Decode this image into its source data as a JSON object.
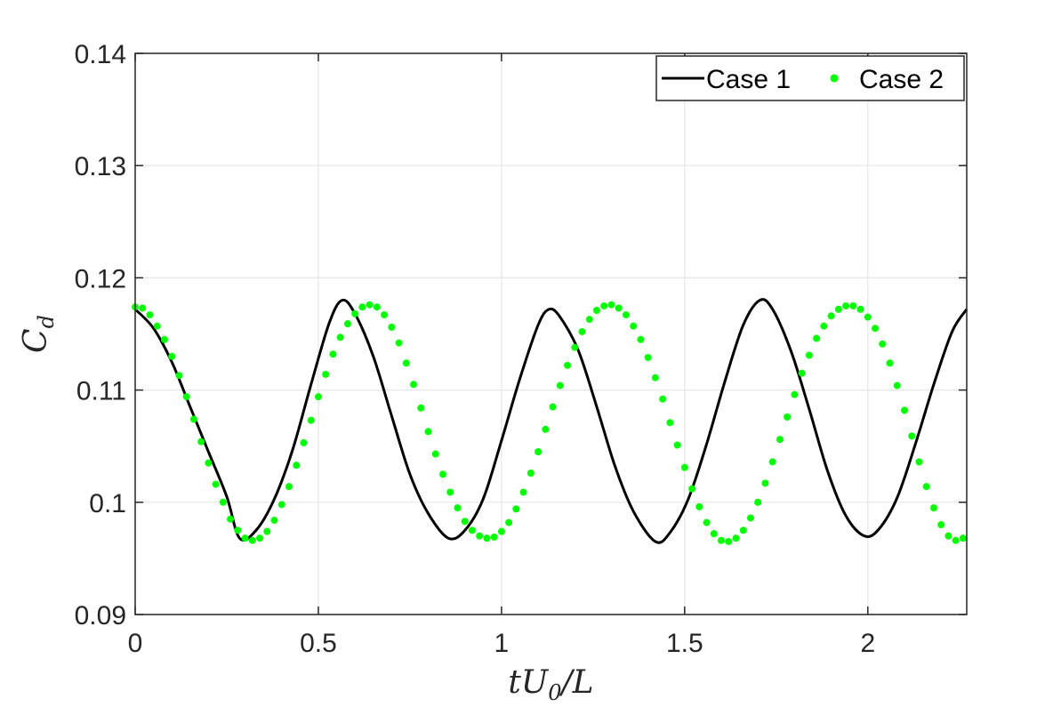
{
  "chart_data": {
    "type": "line",
    "title": "",
    "xlabel": "tU_0/L",
    "ylabel": "C_d",
    "xlim": [
      0,
      2.27
    ],
    "ylim": [
      0.09,
      0.14
    ],
    "xticks": [
      0,
      0.5,
      1,
      1.5,
      2
    ],
    "xtick_labels": [
      "0",
      "0.5",
      "1",
      "1.5",
      "2"
    ],
    "yticks": [
      0.09,
      0.1,
      0.11,
      0.12,
      0.13,
      0.14
    ],
    "ytick_labels": [
      "0.09",
      "0.1",
      "0.11",
      "0.12",
      "0.13",
      "0.14"
    ],
    "grid": true,
    "legend_position": "top-right",
    "series": [
      {
        "name": "Case 1",
        "style": "line",
        "color": "#000000",
        "x": [
          0,
          0.05,
          0.1,
          0.15,
          0.2,
          0.25,
          0.285,
          0.33,
          0.38,
          0.43,
          0.48,
          0.53,
          0.565,
          0.6,
          0.65,
          0.7,
          0.75,
          0.8,
          0.855,
          0.9,
          0.95,
          1.0,
          1.05,
          1.1,
          1.13,
          1.16,
          1.21,
          1.26,
          1.31,
          1.36,
          1.42,
          1.46,
          1.51,
          1.56,
          1.61,
          1.66,
          1.705,
          1.74,
          1.79,
          1.84,
          1.89,
          1.94,
          1.99,
          2.03,
          2.08,
          2.13,
          2.18,
          2.23,
          2.27
        ],
        "y": [
          0.1172,
          0.1155,
          0.1125,
          0.1085,
          0.1045,
          0.1005,
          0.0968,
          0.0975,
          0.1003,
          0.1047,
          0.1105,
          0.116,
          0.118,
          0.1168,
          0.113,
          0.1077,
          0.1025,
          0.099,
          0.0968,
          0.0975,
          0.1003,
          0.1055,
          0.111,
          0.1158,
          0.1172,
          0.1165,
          0.1135,
          0.1085,
          0.1032,
          0.0992,
          0.0965,
          0.0973,
          0.1003,
          0.1052,
          0.1108,
          0.1158,
          0.118,
          0.1172,
          0.1135,
          0.1083,
          0.1028,
          0.0988,
          0.097,
          0.0976,
          0.1004,
          0.1052,
          0.1105,
          0.1152,
          0.1172
        ]
      },
      {
        "name": "Case 2",
        "style": "markers",
        "color": "#00ff00",
        "x": [
          0,
          0.02,
          0.04,
          0.06,
          0.08,
          0.1,
          0.12,
          0.14,
          0.16,
          0.18,
          0.2,
          0.22,
          0.24,
          0.26,
          0.28,
          0.3,
          0.32,
          0.34,
          0.36,
          0.38,
          0.4,
          0.42,
          0.44,
          0.46,
          0.48,
          0.5,
          0.52,
          0.54,
          0.56,
          0.58,
          0.6,
          0.62,
          0.64,
          0.66,
          0.68,
          0.7,
          0.72,
          0.74,
          0.76,
          0.78,
          0.8,
          0.82,
          0.84,
          0.86,
          0.88,
          0.9,
          0.92,
          0.94,
          0.96,
          0.98,
          1.0,
          1.02,
          1.04,
          1.06,
          1.08,
          1.1,
          1.12,
          1.14,
          1.16,
          1.18,
          1.2,
          1.22,
          1.24,
          1.26,
          1.28,
          1.3,
          1.32,
          1.34,
          1.36,
          1.38,
          1.4,
          1.42,
          1.44,
          1.46,
          1.48,
          1.5,
          1.52,
          1.54,
          1.56,
          1.58,
          1.6,
          1.62,
          1.64,
          1.66,
          1.68,
          1.7,
          1.72,
          1.74,
          1.76,
          1.78,
          1.8,
          1.82,
          1.84,
          1.86,
          1.88,
          1.9,
          1.92,
          1.94,
          1.96,
          1.98,
          2.0,
          2.02,
          2.04,
          2.06,
          2.08,
          2.1,
          2.12,
          2.14,
          2.16,
          2.18,
          2.2,
          2.22,
          2.24,
          2.26
        ],
        "y": [
          0.1174,
          0.1173,
          0.1167,
          0.1157,
          0.1145,
          0.113,
          0.1113,
          0.1094,
          0.1074,
          0.1054,
          0.1035,
          0.1016,
          0.1,
          0.0985,
          0.0975,
          0.0968,
          0.0966,
          0.0968,
          0.0974,
          0.0984,
          0.0998,
          0.1014,
          0.1033,
          0.1053,
          0.1073,
          0.1094,
          0.1114,
          0.1132,
          0.1147,
          0.1159,
          0.1168,
          0.1174,
          0.1176,
          0.1174,
          0.1167,
          0.1156,
          0.1142,
          0.1124,
          0.1105,
          0.1084,
          0.1063,
          0.1043,
          0.1025,
          0.1009,
          0.0995,
          0.0983,
          0.0975,
          0.097,
          0.0968,
          0.0969,
          0.0974,
          0.0982,
          0.0994,
          0.1009,
          0.1026,
          0.1045,
          0.1065,
          0.1085,
          0.1104,
          0.1122,
          0.1138,
          0.1152,
          0.1163,
          0.1171,
          0.1175,
          0.1176,
          0.1173,
          0.1167,
          0.1157,
          0.1145,
          0.1129,
          0.1111,
          0.1092,
          0.1071,
          0.1051,
          0.1031,
          0.1012,
          0.0996,
          0.0982,
          0.0972,
          0.0966,
          0.0965,
          0.0968,
          0.0975,
          0.0986,
          0.1,
          0.1017,
          0.1036,
          0.1056,
          0.1076,
          0.1096,
          0.1115,
          0.1131,
          0.1146,
          0.1157,
          0.1166,
          0.1172,
          0.1175,
          0.1175,
          0.1172,
          0.1165,
          0.1155,
          0.1141,
          0.1124,
          0.1104,
          0.1082,
          0.1059,
          0.1036,
          0.1014,
          0.0995,
          0.098,
          0.097,
          0.0966,
          0.0968
        ]
      }
    ]
  }
}
